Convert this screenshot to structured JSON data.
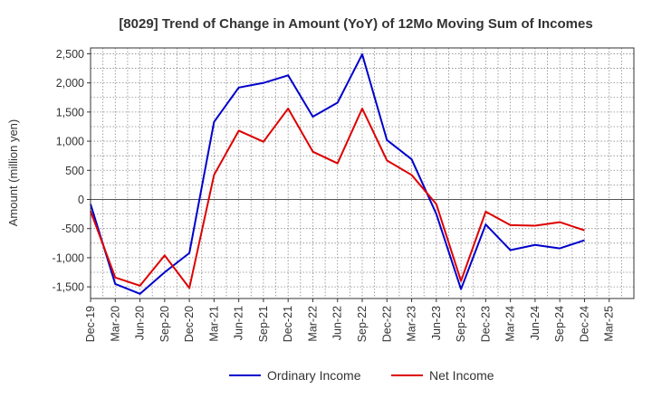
{
  "chart_data": {
    "type": "line",
    "title": "[8029]  Trend of Change in Amount (YoY) of 12Mo Moving Sum of Incomes",
    "ylabel": "Amount (million yen)",
    "xlabel": "",
    "ylim": [
      -1700,
      2600
    ],
    "yticks": [
      2500,
      2000,
      1500,
      1000,
      500,
      0,
      -500,
      -1000,
      -1500
    ],
    "ytick_labels": [
      "2,500",
      "2,000",
      "1,500",
      "1,000",
      "500",
      "0",
      "-500",
      "-1,000",
      "-1,500"
    ],
    "categories": [
      "Dec-19",
      "Mar-20",
      "Jun-20",
      "Sep-20",
      "Dec-20",
      "Mar-21",
      "Jun-21",
      "Sep-21",
      "Dec-21",
      "Mar-22",
      "Jun-22",
      "Sep-22",
      "Dec-22",
      "Mar-23",
      "Jun-23",
      "Sep-23",
      "Dec-23",
      "Mar-24",
      "Jun-24",
      "Sep-24",
      "Dec-24",
      "Mar-25"
    ],
    "grid": true,
    "legend_position": "bottom",
    "series": [
      {
        "name": "Ordinary Income",
        "color": "#0000cc",
        "values": [
          -80,
          -1450,
          -1620,
          -1250,
          -920,
          1330,
          1920,
          2000,
          2130,
          1420,
          1660,
          2490,
          1020,
          690,
          -250,
          -1540,
          -430,
          -870,
          -780,
          -840,
          -700,
          null
        ]
      },
      {
        "name": "Net Income",
        "color": "#dd0000",
        "values": [
          -200,
          -1340,
          -1480,
          -960,
          -1520,
          420,
          1180,
          990,
          1560,
          820,
          620,
          1560,
          670,
          420,
          -80,
          -1400,
          -210,
          -440,
          -450,
          -390,
          -530,
          null
        ]
      }
    ]
  }
}
